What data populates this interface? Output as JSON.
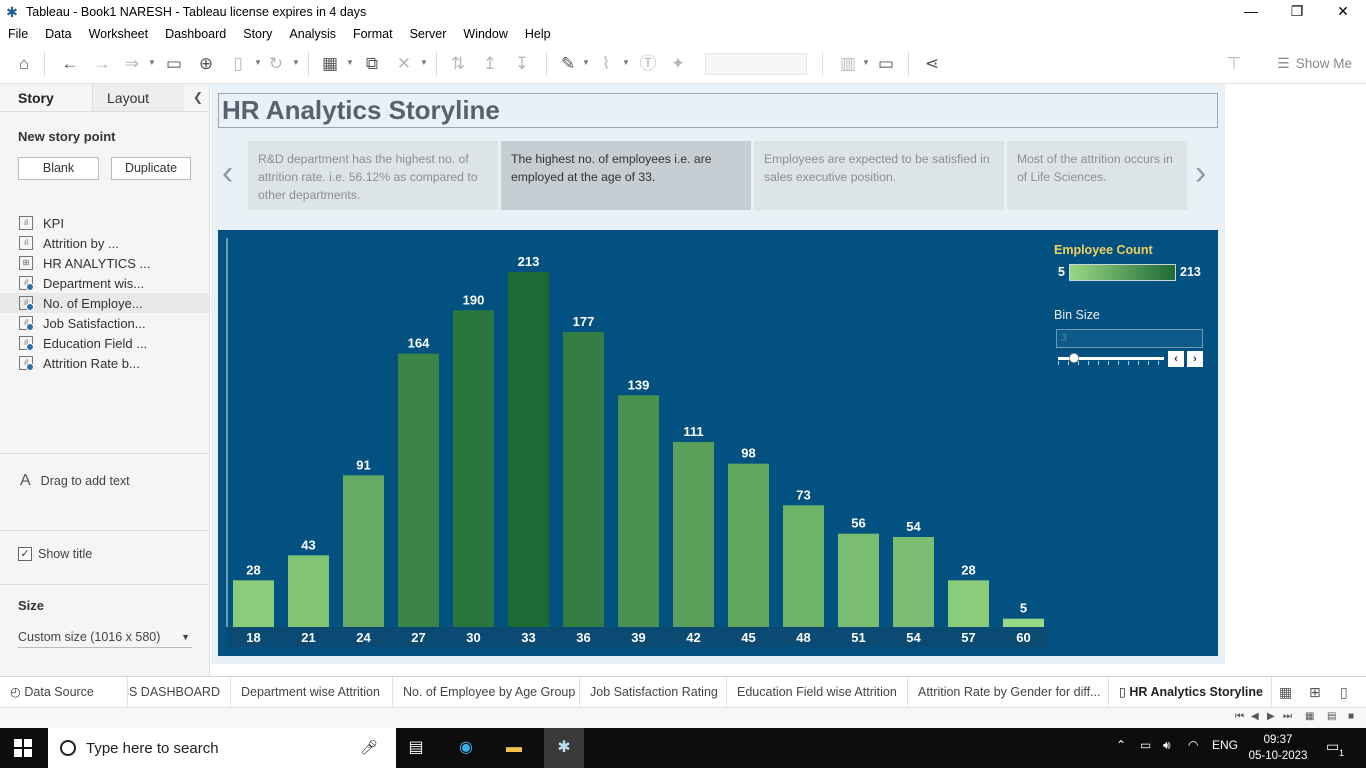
{
  "window": {
    "title": "Tableau - Book1 NARESH - Tableau license expires in 4 days",
    "controls": [
      "—",
      "❐",
      "✕"
    ]
  },
  "menu": [
    "File",
    "Data",
    "Worksheet",
    "Dashboard",
    "Story",
    "Analysis",
    "Format",
    "Server",
    "Window",
    "Help"
  ],
  "toolbar": {
    "show_me": "Show Me"
  },
  "left_panel": {
    "tabs": {
      "story": "Story",
      "layout": "Layout"
    },
    "new_story_point": "New story point",
    "blank_button": "Blank",
    "duplicate_button": "Duplicate",
    "sheets": [
      {
        "label": "KPI",
        "type": "dashboard-sheet"
      },
      {
        "label": "Attrition by ...",
        "type": "dashboard-sheet"
      },
      {
        "label": "HR ANALYTICS ...",
        "type": "dashboard"
      },
      {
        "label": "Department wis...",
        "type": "sheet"
      },
      {
        "label": "No. of Employe...",
        "type": "sheet"
      },
      {
        "label": "Job Satisfaction...",
        "type": "sheet"
      },
      {
        "label": "Education Field ...",
        "type": "sheet"
      },
      {
        "label": "Attrition Rate b...",
        "type": "sheet"
      }
    ],
    "drag_text": "Drag to add text",
    "show_title": "Show title",
    "size_heading": "Size",
    "size_value": "Custom size (1016 x 580)"
  },
  "story": {
    "title": "HR Analytics Storyline",
    "points": [
      "R&D department has the highest no. of attrition rate. i.e. 56.12% as compared to other departments.",
      "The highest no. of employees i.e. are employed at the age of 33.",
      "Employees are expected to be satisfied in sales executive position.",
      "Most of the attrition occurs in of Life Sciences."
    ],
    "active_point": 1
  },
  "legend": {
    "title": "Employee Count",
    "min": "5",
    "max": "213",
    "color_min": "#98d883",
    "color_max": "#1e6a35"
  },
  "bin": {
    "title": "Bin Size",
    "value": "3"
  },
  "chart_data": {
    "type": "bar",
    "categories": [
      "18",
      "21",
      "24",
      "27",
      "30",
      "33",
      "36",
      "39",
      "42",
      "45",
      "48",
      "51",
      "54",
      "57",
      "60"
    ],
    "values": [
      28,
      43,
      91,
      164,
      190,
      213,
      177,
      139,
      111,
      98,
      73,
      56,
      54,
      28,
      5
    ],
    "ylim": [
      0,
      220
    ],
    "grid": false,
    "legend": "top-right",
    "background": "#035180"
  },
  "sheet_tabs": [
    "Data Source",
    "CS DASHBOARD",
    "Department wise Attrition",
    "No. of Employee by Age Group",
    "Job Satisfaction Rating",
    "Education Field wise Attrition",
    "Attrition Rate by Gender for diff...",
    "HR Analytics Storyline"
  ],
  "taskbar": {
    "search_placeholder": "Type here to search",
    "language": "ENG",
    "time": "09:37",
    "date": "05-10-2023",
    "notification_count": "1"
  }
}
